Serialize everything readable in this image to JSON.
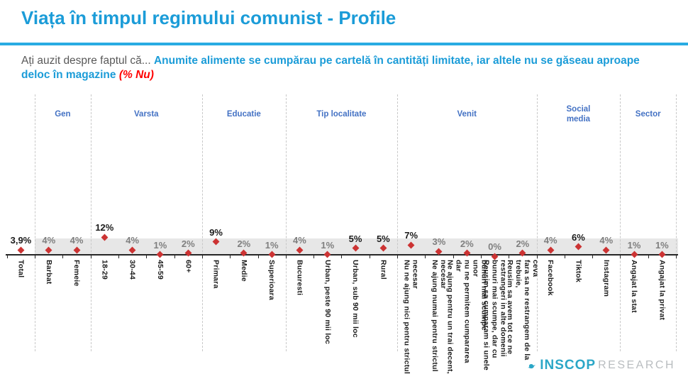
{
  "title": "Viața în timpul regimului comunist - Profile",
  "question": {
    "prefix": "Ați auzit despre faptul că... ",
    "highlight": "Anumite alimente se cumpărau pe cartelă în cantități limitate, iar altele nu se găseau aproape deloc în magazine ",
    "metric": "(% Nu)"
  },
  "logo": {
    "name": "INSCOP",
    "suffix": "RESEARCH"
  },
  "colors": {
    "accent_cyan": "#1b9cd8",
    "rule_cyan": "#29abe2",
    "group_blue": "#4472c4",
    "marker_red": "#cc3333",
    "band_gray": "#e7e7e7",
    "value_emphasis": "#1a1a1a",
    "value_muted": "#7f7f7f"
  },
  "chart_data": {
    "type": "scatter",
    "marker": "diamond",
    "ylim": [
      0,
      13
    ],
    "grid": false,
    "legend": false,
    "groups": [
      {
        "label": "",
        "categories": [
          {
            "label": "Total",
            "value": 3.9,
            "display": "3,9%",
            "emphasis": true
          }
        ]
      },
      {
        "label": "Gen",
        "categories": [
          {
            "label": "Barbat",
            "value": 4,
            "display": "4%",
            "emphasis": false
          },
          {
            "label": "Femeie",
            "value": 4,
            "display": "4%",
            "emphasis": false
          }
        ]
      },
      {
        "label": "Varsta",
        "categories": [
          {
            "label": "18-29",
            "value": 12,
            "display": "12%",
            "emphasis": true
          },
          {
            "label": "30-44",
            "value": 4,
            "display": "4%",
            "emphasis": false
          },
          {
            "label": "45-59",
            "value": 1,
            "display": "1%",
            "emphasis": false
          },
          {
            "label": "60+",
            "value": 2,
            "display": "2%",
            "emphasis": false
          }
        ]
      },
      {
        "label": "Educatie",
        "categories": [
          {
            "label": "Primara",
            "value": 9,
            "display": "9%",
            "emphasis": true
          },
          {
            "label": "Medie",
            "value": 2,
            "display": "2%",
            "emphasis": false
          },
          {
            "label": "Superioara",
            "value": 1,
            "display": "1%",
            "emphasis": false
          }
        ]
      },
      {
        "label": "Tip localitate",
        "categories": [
          {
            "label": "Bucuresti",
            "value": 4,
            "display": "4%",
            "emphasis": false
          },
          {
            "label": "Urban, peste 90 mii loc",
            "value": 1,
            "display": "1%",
            "emphasis": false
          },
          {
            "label": "Urban, sub 90 mii loc",
            "value": 5,
            "display": "5%",
            "emphasis": true
          },
          {
            "label": "Rural",
            "value": 5,
            "display": "5%",
            "emphasis": true
          }
        ]
      },
      {
        "label": "Venit",
        "categories": [
          {
            "label": "Nu ne ajung nici pentru strictul\nnecesar",
            "value": 7,
            "display": "7%",
            "emphasis": true
          },
          {
            "label": "Ne ajung numai pentru strictul\nnecesar",
            "value": 3,
            "display": "3%",
            "emphasis": false
          },
          {
            "label": "Ne ajung pentru un trai decent, dar\nnu ne permitem cumpararea unor\nbunuri mai scumpe",
            "value": 2,
            "display": "2%",
            "emphasis": false
          },
          {
            "label": "Reusim sa cumparam si unele\nbunuri mai scumpe, dar cu\nrestrangeri in alte domenii",
            "value": 0,
            "display": "0%",
            "emphasis": false
          },
          {
            "label": "Reusim sa avem tot ce ne trebuie,\nfara sa ne restrangem de la ceva",
            "value": 2,
            "display": "2%",
            "emphasis": false
          }
        ]
      },
      {
        "label": "Social\nmedia",
        "categories": [
          {
            "label": "Facebook",
            "value": 4,
            "display": "4%",
            "emphasis": false
          },
          {
            "label": "Tiktok",
            "value": 6,
            "display": "6%",
            "emphasis": true
          },
          {
            "label": "Instagram",
            "value": 4,
            "display": "4%",
            "emphasis": false
          }
        ]
      },
      {
        "label": "Sector",
        "categories": [
          {
            "label": "Angajat la stat",
            "value": 1,
            "display": "1%",
            "emphasis": false
          },
          {
            "label": "Angajat la privat",
            "value": 1,
            "display": "1%",
            "emphasis": false
          }
        ]
      }
    ]
  }
}
